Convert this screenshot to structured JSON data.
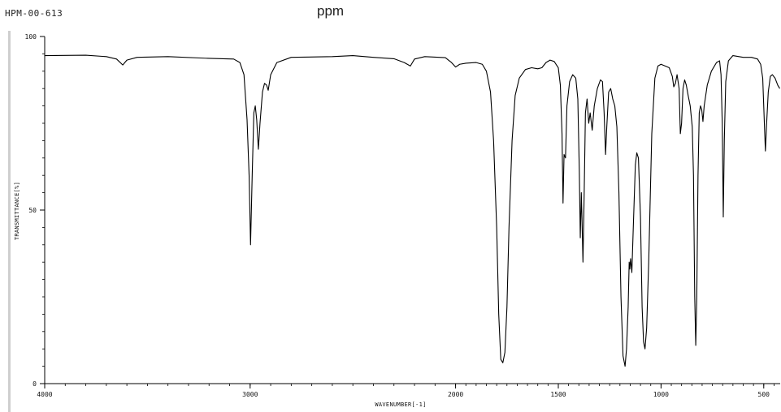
{
  "header": {
    "sample_id": "HPM-00-613",
    "title": "ppm"
  },
  "chart_data": {
    "type": "line",
    "title": "ppm",
    "xlabel": "WAVENUMBER[-1]",
    "ylabel": "TRANSMITTANCE[%]",
    "xlim": [
      4000,
      420
    ],
    "ylim": [
      0,
      100
    ],
    "x_ticks": [
      4000,
      3000,
      2000,
      1500,
      1000,
      500
    ],
    "x_tick_labels": [
      "4000",
      "3000",
      "2000",
      "1500",
      "1000",
      "500"
    ],
    "y_ticks": [
      0,
      50,
      100
    ],
    "y_tick_labels": [
      "0",
      "50",
      "100"
    ],
    "grid": false,
    "series": [
      {
        "points": [
          [
            4000,
            94.5
          ],
          [
            3800,
            94.6
          ],
          [
            3700,
            94.2
          ],
          [
            3650,
            93.5
          ],
          [
            3620,
            91.8
          ],
          [
            3600,
            93.2
          ],
          [
            3550,
            94.0
          ],
          [
            3400,
            94.2
          ],
          [
            3200,
            93.7
          ],
          [
            3080,
            93.5
          ],
          [
            3050,
            92.5
          ],
          [
            3030,
            89.0
          ],
          [
            3015,
            76.0
          ],
          [
            3005,
            60.0
          ],
          [
            2998,
            40.0
          ],
          [
            2990,
            60.0
          ],
          [
            2982,
            78.0
          ],
          [
            2975,
            80.0
          ],
          [
            2968,
            76.0
          ],
          [
            2960,
            67.5
          ],
          [
            2952,
            75.0
          ],
          [
            2940,
            84.0
          ],
          [
            2930,
            86.5
          ],
          [
            2920,
            86.0
          ],
          [
            2912,
            84.5
          ],
          [
            2900,
            89.0
          ],
          [
            2870,
            92.5
          ],
          [
            2800,
            94.0
          ],
          [
            2600,
            94.2
          ],
          [
            2500,
            94.5
          ],
          [
            2400,
            94.0
          ],
          [
            2300,
            93.6
          ],
          [
            2250,
            92.5
          ],
          [
            2220,
            91.5
          ],
          [
            2200,
            93.5
          ],
          [
            2150,
            94.2
          ],
          [
            2050,
            93.9
          ],
          [
            2020,
            92.5
          ],
          [
            2000,
            91.2
          ],
          [
            1980,
            92.0
          ],
          [
            1950,
            92.3
          ],
          [
            1900,
            92.5
          ],
          [
            1870,
            92.0
          ],
          [
            1850,
            90.0
          ],
          [
            1830,
            84.0
          ],
          [
            1815,
            70.0
          ],
          [
            1800,
            45.0
          ],
          [
            1790,
            20.0
          ],
          [
            1780,
            7.0
          ],
          [
            1770,
            6.0
          ],
          [
            1760,
            9.0
          ],
          [
            1750,
            22.0
          ],
          [
            1740,
            45.0
          ],
          [
            1725,
            70.0
          ],
          [
            1710,
            83.0
          ],
          [
            1690,
            88.0
          ],
          [
            1660,
            90.5
          ],
          [
            1630,
            91.0
          ],
          [
            1600,
            90.7
          ],
          [
            1580,
            91.0
          ],
          [
            1560,
            92.5
          ],
          [
            1540,
            93.2
          ],
          [
            1520,
            92.8
          ],
          [
            1500,
            91.0
          ],
          [
            1490,
            86.0
          ],
          [
            1482,
            72.0
          ],
          [
            1477,
            52.0
          ],
          [
            1472,
            66.0
          ],
          [
            1465,
            65.0
          ],
          [
            1458,
            80.0
          ],
          [
            1445,
            87.0
          ],
          [
            1430,
            89.0
          ],
          [
            1415,
            88.0
          ],
          [
            1405,
            82.0
          ],
          [
            1398,
            62.0
          ],
          [
            1393,
            42.0
          ],
          [
            1388,
            55.0
          ],
          [
            1385,
            48.0
          ],
          [
            1380,
            35.0
          ],
          [
            1374,
            55.0
          ],
          [
            1368,
            78.0
          ],
          [
            1360,
            82.0
          ],
          [
            1352,
            75.0
          ],
          [
            1345,
            78.0
          ],
          [
            1335,
            73.0
          ],
          [
            1325,
            80.0
          ],
          [
            1310,
            85.0
          ],
          [
            1295,
            87.5
          ],
          [
            1285,
            87.0
          ],
          [
            1277,
            78.0
          ],
          [
            1270,
            66.0
          ],
          [
            1264,
            74.0
          ],
          [
            1255,
            84.0
          ],
          [
            1245,
            85.0
          ],
          [
            1235,
            82.0
          ],
          [
            1225,
            80.0
          ],
          [
            1215,
            74.0
          ],
          [
            1205,
            55.0
          ],
          [
            1195,
            25.0
          ],
          [
            1185,
            8.0
          ],
          [
            1175,
            5.0
          ],
          [
            1168,
            10.0
          ],
          [
            1160,
            22.0
          ],
          [
            1155,
            35.0
          ],
          [
            1152,
            33.0
          ],
          [
            1148,
            36.0
          ],
          [
            1142,
            32.0
          ],
          [
            1135,
            45.0
          ],
          [
            1125,
            63.0
          ],
          [
            1118,
            66.5
          ],
          [
            1110,
            65.0
          ],
          [
            1100,
            48.0
          ],
          [
            1092,
            22.0
          ],
          [
            1085,
            12.0
          ],
          [
            1078,
            10.0
          ],
          [
            1070,
            16.0
          ],
          [
            1060,
            35.0
          ],
          [
            1045,
            72.0
          ],
          [
            1030,
            88.0
          ],
          [
            1015,
            91.5
          ],
          [
            1000,
            92.0
          ],
          [
            980,
            91.5
          ],
          [
            960,
            91.0
          ],
          [
            945,
            88.5
          ],
          [
            938,
            85.5
          ],
          [
            930,
            86.5
          ],
          [
            922,
            89.0
          ],
          [
            912,
            85.0
          ],
          [
            906,
            72.0
          ],
          [
            900,
            75.0
          ],
          [
            893,
            85.0
          ],
          [
            885,
            87.5
          ],
          [
            877,
            86.0
          ],
          [
            868,
            83.0
          ],
          [
            858,
            80.0
          ],
          [
            848,
            74.0
          ],
          [
            842,
            60.0
          ],
          [
            836,
            25.0
          ],
          [
            831,
            11.0
          ],
          [
            826,
            25.0
          ],
          [
            820,
            60.0
          ],
          [
            814,
            78.0
          ],
          [
            808,
            80.0
          ],
          [
            802,
            79.0
          ],
          [
            796,
            75.5
          ],
          [
            790,
            80.0
          ],
          [
            775,
            86.0
          ],
          [
            755,
            90.0
          ],
          [
            730,
            92.5
          ],
          [
            715,
            93.0
          ],
          [
            708,
            89.0
          ],
          [
            702,
            75.0
          ],
          [
            697,
            48.0
          ],
          [
            692,
            70.0
          ],
          [
            685,
            87.0
          ],
          [
            672,
            93.0
          ],
          [
            650,
            94.5
          ],
          [
            600,
            94.0
          ],
          [
            560,
            94.0
          ],
          [
            530,
            93.5
          ],
          [
            515,
            92.0
          ],
          [
            505,
            88.0
          ],
          [
            497,
            75.0
          ],
          [
            492,
            67.0
          ],
          [
            486,
            75.0
          ],
          [
            478,
            84.0
          ],
          [
            468,
            88.5
          ],
          [
            458,
            89.0
          ],
          [
            445,
            88.0
          ],
          [
            432,
            86.0
          ],
          [
            422,
            85.0
          ]
        ]
      }
    ]
  }
}
